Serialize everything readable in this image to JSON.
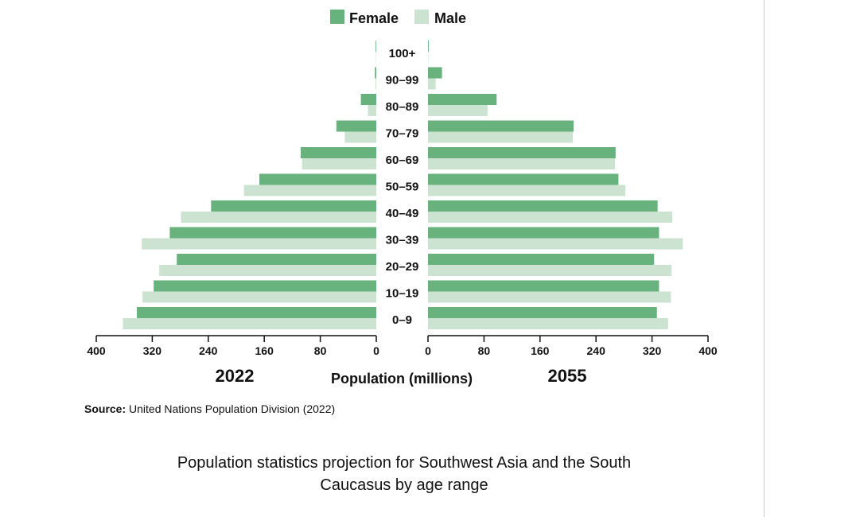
{
  "chart_data": {
    "type": "bar",
    "subtype": "population-pyramid",
    "categories": [
      "0–9",
      "10–19",
      "20–29",
      "30–39",
      "40–49",
      "50–59",
      "60–69",
      "70–79",
      "80–89",
      "90–99",
      "100+"
    ],
    "panels": [
      {
        "label": "2022",
        "series": [
          {
            "name": "Female",
            "values": [
              342,
              318,
              285,
              295,
              236,
              167,
              108,
              57,
              22,
              2,
              1
            ]
          },
          {
            "name": "Male",
            "values": [
              362,
              334,
              310,
              335,
              279,
              189,
              106,
              45,
              12,
              1,
              0.5
            ]
          }
        ]
      },
      {
        "label": "2055",
        "series": [
          {
            "name": "Female",
            "values": [
              327,
              330,
              323,
              330,
              328,
              272,
              268,
              208,
              98,
              20,
              1
            ]
          },
          {
            "name": "Male",
            "values": [
              343,
              347,
              348,
              364,
              349,
              282,
              267,
              207,
              85,
              11,
              0.5
            ]
          }
        ]
      }
    ],
    "xlabel": "Population (millions)",
    "xlim": [
      0,
      400
    ],
    "ticks": [
      "400",
      "320",
      "240",
      "160",
      "80",
      "0"
    ],
    "ticks_right": [
      "0",
      "80",
      "160",
      "240",
      "320",
      "400"
    ],
    "legend": [
      {
        "name": "Female",
        "color": "#68b27e"
      },
      {
        "name": "Male",
        "color": "#cde3d1"
      }
    ],
    "legend_position": "top-center",
    "grid": false
  },
  "source_label": "Source:",
  "source_text": "United Nations Population Division (2022)",
  "caption": "Population statistics projection for Southwest Asia and the South Caucasus by age range"
}
